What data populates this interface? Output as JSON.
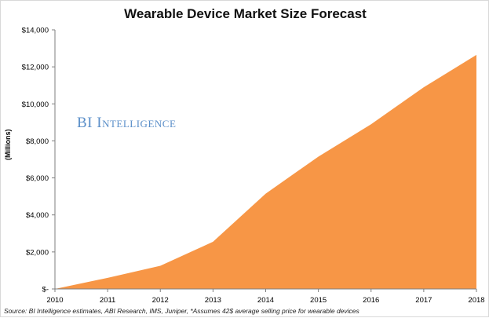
{
  "chart_data": {
    "type": "area",
    "title": "Wearable Device Market Size Forecast",
    "ylabel": "(Millions)",
    "xlabel": "",
    "x": [
      "2010",
      "2011",
      "2012",
      "2013",
      "2014",
      "2015",
      "2016",
      "2017",
      "2018"
    ],
    "series": [
      {
        "values": [
          0,
          600,
          1250,
          2550,
          5150,
          7150,
          8900,
          10900,
          12650
        ],
        "color": "#f79646"
      }
    ],
    "ylim": [
      0,
      14000
    ],
    "yticks": [
      0,
      2000,
      4000,
      6000,
      8000,
      10000,
      12000,
      14000
    ],
    "ytick_labels": [
      "$-",
      "$2,000",
      "$4,000",
      "$6,000",
      "$8,000",
      "$10,000",
      "$12,000",
      "$14,000"
    ],
    "grid": false,
    "watermark": "BI Intelligence",
    "source": "Source: BI Intelligence estimates, ABI Research, IMS, Juniper, *Assumes 42$ average selling price for wearable devices"
  }
}
